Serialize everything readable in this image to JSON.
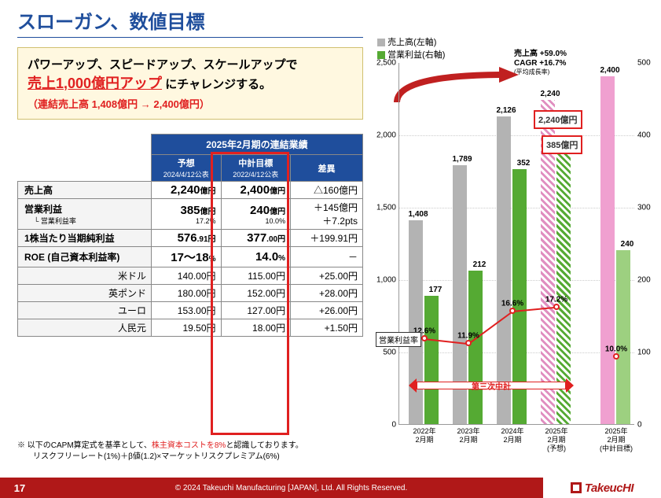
{
  "title": "スローガン、数値目標",
  "slogan": {
    "line1": "パワーアップ、スピードアップ、スケールアップで",
    "line2_red": "売上1,000億円アップ",
    "line2_tail": " にチャレンジする。",
    "line3": "（連結売上高 1,408億円 → 2,400億円）"
  },
  "table": {
    "title": "2025年2月期の連結業績",
    "cols": [
      {
        "label": "予想",
        "sub": "2024/4/12公表"
      },
      {
        "label": "中計目標",
        "sub": "2022/4/12公表"
      },
      {
        "label": "差異",
        "sub": ""
      }
    ],
    "rows": [
      {
        "h": "売上高",
        "hs": "",
        "v1": "2,240",
        "u1": "億円",
        "s1": "",
        "v2": "2,400",
        "u2": "億円",
        "s2": "",
        "v3": "△160億円",
        "s3": ""
      },
      {
        "h": "営業利益",
        "hs": "└ 営業利益率",
        "v1": "385",
        "u1": "億円",
        "s1": "17.2%",
        "v2": "240",
        "u2": "億円",
        "s2": "10.0%",
        "v3": "＋145億円",
        "s3": "＋7.2pts"
      },
      {
        "h": "1株当たり当期純利益",
        "hs": "",
        "v1": "576",
        "u1": ".91円",
        "s1": "",
        "v2": "377",
        "u2": ".00円",
        "s2": "",
        "v3": "＋199.91円",
        "s3": ""
      },
      {
        "h": "ROE (自己資本利益率)",
        "hs": "",
        "v1": "17～18",
        "u1": "%",
        "s1": "",
        "v2": "14.0",
        "u2": "%",
        "s2": "",
        "v3": "－",
        "s3": ""
      }
    ],
    "fx": [
      {
        "h": "米ドル",
        "v1": "140.00円",
        "v2": "115.00円",
        "v3": "+25.00円"
      },
      {
        "h": "英ポンド",
        "v1": "180.00円",
        "v2": "152.00円",
        "v3": "+28.00円"
      },
      {
        "h": "ユーロ",
        "v1": "153.00円",
        "v2": "127.00円",
        "v3": "+26.00円"
      },
      {
        "h": "人民元",
        "v1": "19.50円",
        "v2": "18.00円",
        "v3": "+1.50円"
      }
    ]
  },
  "footnote": {
    "l1a": "※ 以下のCAPM算定式を基準として、",
    "l1b": "株主資本コストを8%",
    "l1c": "と認識しております。",
    "l2": "リスクフリーレート(1%)＋β値(1.2)×マーケットリスクプレミアム(6%)"
  },
  "chart": {
    "legend": {
      "sales": "売上高(左軸)",
      "sales_color": "#b3b3b3",
      "op": "営業利益(右軸)",
      "op_color": "#55aa33"
    },
    "cagr": {
      "l1": "売上高   +59.0%",
      "l2": "CAGR   +16.7%",
      "l3": "(平均成長率)"
    },
    "ylim_left": 2500,
    "ylim_right": 500,
    "ytick_step": 500,
    "ytick_step_r": 100,
    "x_labels": [
      "2022年\n2月期",
      "2023年\n2月期",
      "2024年\n2月期",
      "2025年\n2月期\n(予想)",
      "2025年\n2月期\n(中計目標)"
    ],
    "sales": [
      1408,
      1789,
      2126,
      2240,
      2400
    ],
    "op": [
      177,
      212,
      352,
      385,
      240
    ],
    "pct": [
      12.6,
      11.9,
      16.6,
      17.2,
      10.0
    ],
    "ann": {
      "sales_pred": "2,240億円",
      "op_pred": "385億円",
      "target_sales": "2,400",
      "target_op": "240"
    },
    "period_label": "第三次中計",
    "op_rate_label": "営業利益率"
  },
  "footer": {
    "page": "17",
    "copyright": "© 2024 Takeuchi Manufacturing [JAPAN], Ltd. All Rights Reserved.",
    "logo": "TakeucHI"
  }
}
